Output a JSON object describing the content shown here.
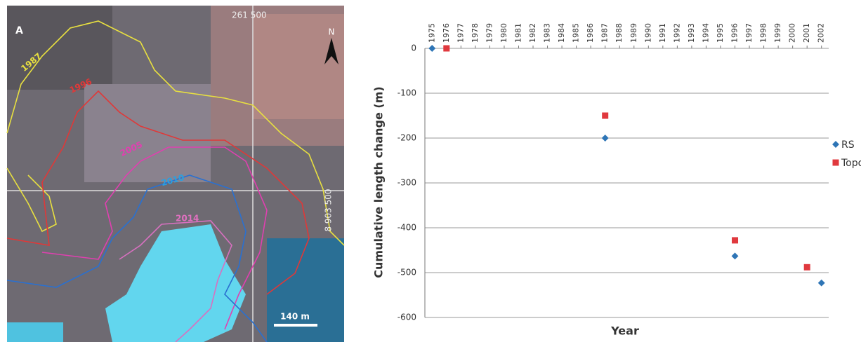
{
  "map": {
    "panel_label": "A",
    "easting": "261 500",
    "northing": "8 903 500",
    "north": "N",
    "scale": "140 m",
    "contour_labels": [
      "1987",
      "1996",
      "2005",
      "2010",
      "2014"
    ]
  },
  "chart_data": {
    "type": "scatter",
    "x_label": "Year",
    "y_label": "Cumulative length change (m)",
    "series": [
      {
        "name": "RS",
        "color": "#2e75b6",
        "marker": "diamond",
        "x": [
          1975,
          1987,
          1996,
          2002
        ],
        "values": [
          0,
          -200,
          -463,
          -523
        ]
      },
      {
        "name": "Topo",
        "color": "#e0393e",
        "marker": "square",
        "x": [
          1976,
          1987,
          1996,
          2001
        ],
        "values": [
          0,
          -150,
          -428,
          -488
        ]
      }
    ],
    "xlim": [
      1974.5,
      2002.5
    ],
    "xticks": [
      1975,
      1976,
      1977,
      1978,
      1979,
      1980,
      1981,
      1982,
      1983,
      1984,
      1985,
      1986,
      1987,
      1988,
      1989,
      1990,
      1991,
      1992,
      1993,
      1994,
      1995,
      1996,
      1997,
      1998,
      1999,
      2000,
      2001,
      2002
    ],
    "ylim": [
      -600,
      0
    ],
    "yticks": [
      0,
      -100,
      -200,
      -300,
      -400,
      -500,
      -600
    ],
    "grid": true,
    "legend": "right"
  }
}
